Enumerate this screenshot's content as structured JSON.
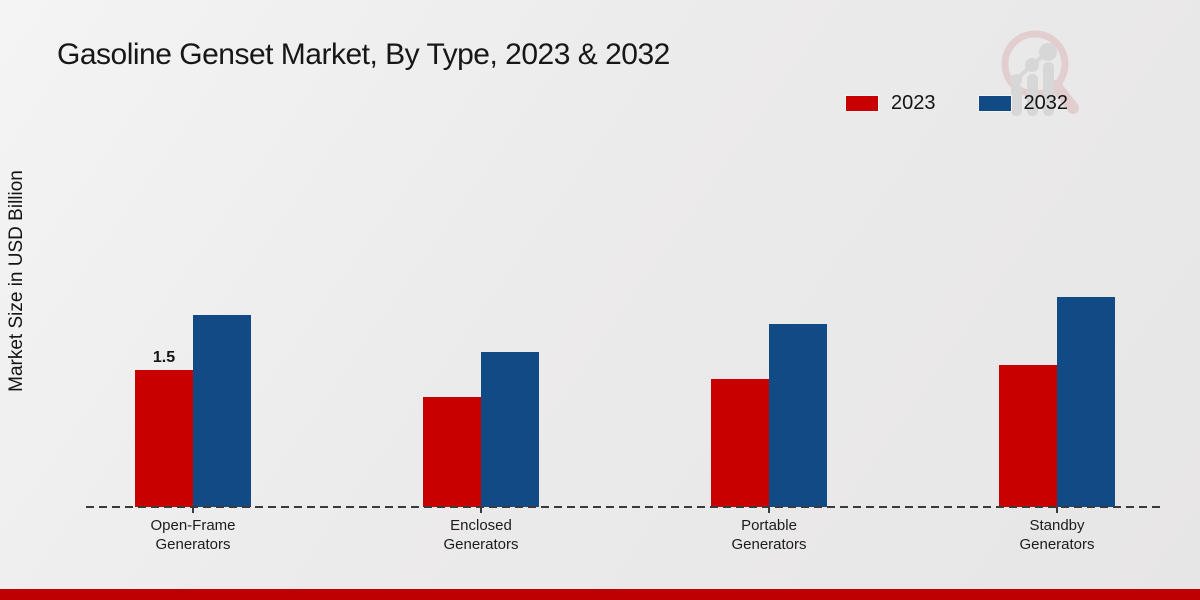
{
  "title": "Gasoline Genset Market, By Type, 2023 & 2032",
  "ylabel": "Market Size in USD Billion",
  "legend": {
    "items": [
      {
        "label": "2023",
        "color": "#c80000"
      },
      {
        "label": "2032",
        "color": "#124a86"
      }
    ]
  },
  "logo_name": "market-research-future-watermark",
  "footer": {
    "accent_color": "#bf0000"
  },
  "colors": {
    "series_2023": "#c80000",
    "series_2032": "#124a86",
    "axis_dash": "#3a3a3a",
    "background": "#ebebeb"
  },
  "chart_data": {
    "type": "bar",
    "categories": [
      "Open-Frame Generators",
      "Enclosed Generators",
      "Portable Generators",
      "Standby Generators"
    ],
    "series": [
      {
        "name": "2023",
        "color": "#c80000",
        "values": [
          1.5,
          1.2,
          1.4,
          1.55
        ]
      },
      {
        "name": "2032",
        "color": "#124a86",
        "values": [
          2.1,
          1.7,
          2.0,
          2.3
        ]
      }
    ],
    "title": "Gasoline Genset Market, By Type, 2023 & 2032",
    "xlabel": "",
    "ylabel": "Market Size in USD Billion",
    "ylim": [
      0,
      2.5
    ],
    "grid": false,
    "legend_position": "top-right",
    "baseline_style": "dashed",
    "data_labels": [
      {
        "series": "2023",
        "category_index": 0,
        "text": "1.5"
      }
    ]
  }
}
